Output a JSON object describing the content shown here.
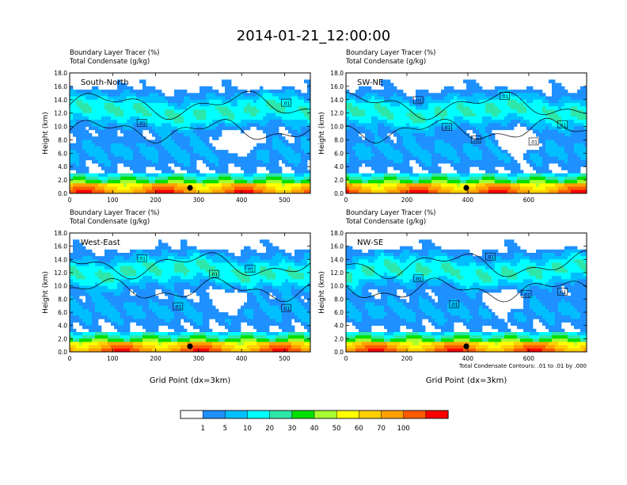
{
  "title": "2014-01-21_12:00:00",
  "panel_titles": [
    "Boundary Layer Tracer   (%)",
    "Total Condensate   (g/kg)"
  ],
  "ylabel": "Height (km)",
  "xlabel": "Grid Point (dx=3km)",
  "contour_note": "Total Condensate Contours: .01 to .01 by .000",
  "colorbar": {
    "labels": [
      "1",
      "5",
      "10",
      "20",
      "30",
      "40",
      "50",
      "60",
      "70",
      "100"
    ],
    "colors": [
      "#ffffff",
      "#1e90ff",
      "#00bfff",
      "#00ffff",
      "#2ee6a8",
      "#00e000",
      "#a8ff30",
      "#ffff00",
      "#ffd000",
      "#ffa000",
      "#ff5a00",
      "#ff0000"
    ]
  },
  "chart_data": [
    {
      "type": "heatmap",
      "panel": "South-North",
      "xlim": [
        0,
        560
      ],
      "ylim": [
        0,
        18
      ],
      "xticks": [
        "0",
        "100",
        "200",
        "300",
        "400",
        "500"
      ],
      "yticks": [
        "0.0",
        "2.0",
        "4.0",
        "6.0",
        "8.0",
        "10.0",
        "12.0",
        "14.0",
        "16.0",
        "18.0"
      ],
      "contour_labels": [
        ".01",
        ".01"
      ],
      "marker_x": 280
    },
    {
      "type": "heatmap",
      "panel": "SW-NE",
      "xlim": [
        0,
        790
      ],
      "ylim": [
        0,
        18
      ],
      "xticks": [
        "0",
        "200",
        "400",
        "600"
      ],
      "yticks": [
        "0.0",
        "2.0",
        "4.0",
        "6.0",
        "8.0",
        "10.0",
        "12.0",
        "14.0",
        "16.0",
        "18.0"
      ],
      "contour_labels": [
        ".01",
        ".01",
        ".01",
        ".01",
        ".01",
        ".01"
      ],
      "marker_x": 395
    },
    {
      "type": "heatmap",
      "panel": "West-East",
      "xlim": [
        0,
        560
      ],
      "ylim": [
        0,
        18
      ],
      "xticks": [
        "0",
        "100",
        "200",
        "300",
        "400",
        "500"
      ],
      "yticks": [
        "0.0",
        "2.0",
        "4.0",
        "6.0",
        "8.0",
        "10.0",
        "12.0",
        "14.0",
        "16.0",
        "18.0"
      ],
      "contour_labels": [
        ".01",
        ".01",
        ".01",
        ".01",
        ".01"
      ],
      "marker_x": 280
    },
    {
      "type": "heatmap",
      "panel": "NW-SE",
      "xlim": [
        0,
        790
      ],
      "ylim": [
        0,
        18
      ],
      "xticks": [
        "0",
        "200",
        "400",
        "600"
      ],
      "yticks": [
        "0.0",
        "2.0",
        "4.0",
        "6.0",
        "8.0",
        "10.0",
        "12.0",
        "14.0",
        "16.0",
        "18.0"
      ],
      "contour_labels": [
        ".01",
        ".01",
        ".01",
        ".01",
        ".01"
      ],
      "marker_x": 395
    }
  ]
}
